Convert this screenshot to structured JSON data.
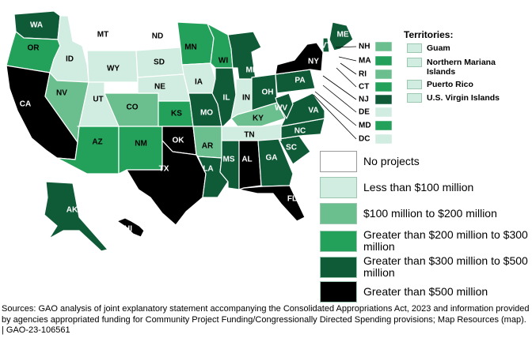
{
  "colors": {
    "none": "#ffffff",
    "lt100": "#d1ece0",
    "100to200": "#6bbf8e",
    "200to300": "#23a05a",
    "300to500": "#0f5b38",
    "gt500": "#000000",
    "border": "#ffffff",
    "swatch_border": "#9cc7b0"
  },
  "legend": [
    {
      "key": "none",
      "label": "No projects"
    },
    {
      "key": "lt100",
      "label": "Less than $100 million"
    },
    {
      "key": "100to200",
      "label": "$100 million to $200 million"
    },
    {
      "key": "200to300",
      "label": "Greater than $200 million to $300 million"
    },
    {
      "key": "300to500",
      "label": "Greater than $300 million to $500 million"
    },
    {
      "key": "gt500",
      "label": "Greater than $500 million"
    }
  ],
  "territories": {
    "title": "Territories:",
    "items": [
      {
        "name": "Guam",
        "category": "lt100"
      },
      {
        "name": "Northern Mariana Islands",
        "category": "lt100"
      },
      {
        "name": "Puerto Rico",
        "category": "lt100"
      },
      {
        "name": "U.S. Virgin Islands",
        "category": "lt100"
      }
    ]
  },
  "states": {
    "WA": "300to500",
    "OR": "200to300",
    "CA": "gt500",
    "ID": "lt100",
    "NV": "100to200",
    "MT": "none",
    "WY": "lt100",
    "UT": "lt100",
    "AZ": "200to300",
    "CO": "100to200",
    "NM": "200to300",
    "ND": "none",
    "SD": "lt100",
    "NE": "lt100",
    "KS": "200to300",
    "OK": "gt500",
    "TX": "gt500",
    "MN": "200to300",
    "IA": "lt100",
    "MO": "300to500",
    "AR": "100to200",
    "LA": "300to500",
    "WI": "200to300",
    "IL": "300to500",
    "MI": "300to500",
    "IN": "lt100",
    "OH": "300to500",
    "KY": "100to200",
    "TN": "lt100",
    "MS": "300to500",
    "AL": "gt500",
    "GA": "300to500",
    "FL": "gt500",
    "SC": "300to500",
    "NC": "300to500",
    "VA": "300to500",
    "WV": "300to500",
    "PA": "300to500",
    "NY": "gt500",
    "VT": "300to500",
    "ME": "300to500",
    "AK": "300to500",
    "HI": "gt500"
  },
  "northeast": [
    {
      "code": "NH",
      "category": "100to200"
    },
    {
      "code": "MA",
      "category": "200to300"
    },
    {
      "code": "RI",
      "category": "100to200"
    },
    {
      "code": "CT",
      "category": "200to300"
    },
    {
      "code": "NJ",
      "category": "300to500"
    },
    {
      "code": "DE",
      "category": "lt100"
    },
    {
      "code": "MD",
      "category": "200to300"
    },
    {
      "code": "DC",
      "category": "lt100"
    }
  ],
  "source_note": "Sources: GAO analysis of joint explanatory statement accompanying the Consolidated Appropriations Act, 2023 and information provided by agencies appropriated funding for Community Project Funding/Congressionally Directed Spending provisions; Map Resources (map).  |  GAO-23-106561"
}
